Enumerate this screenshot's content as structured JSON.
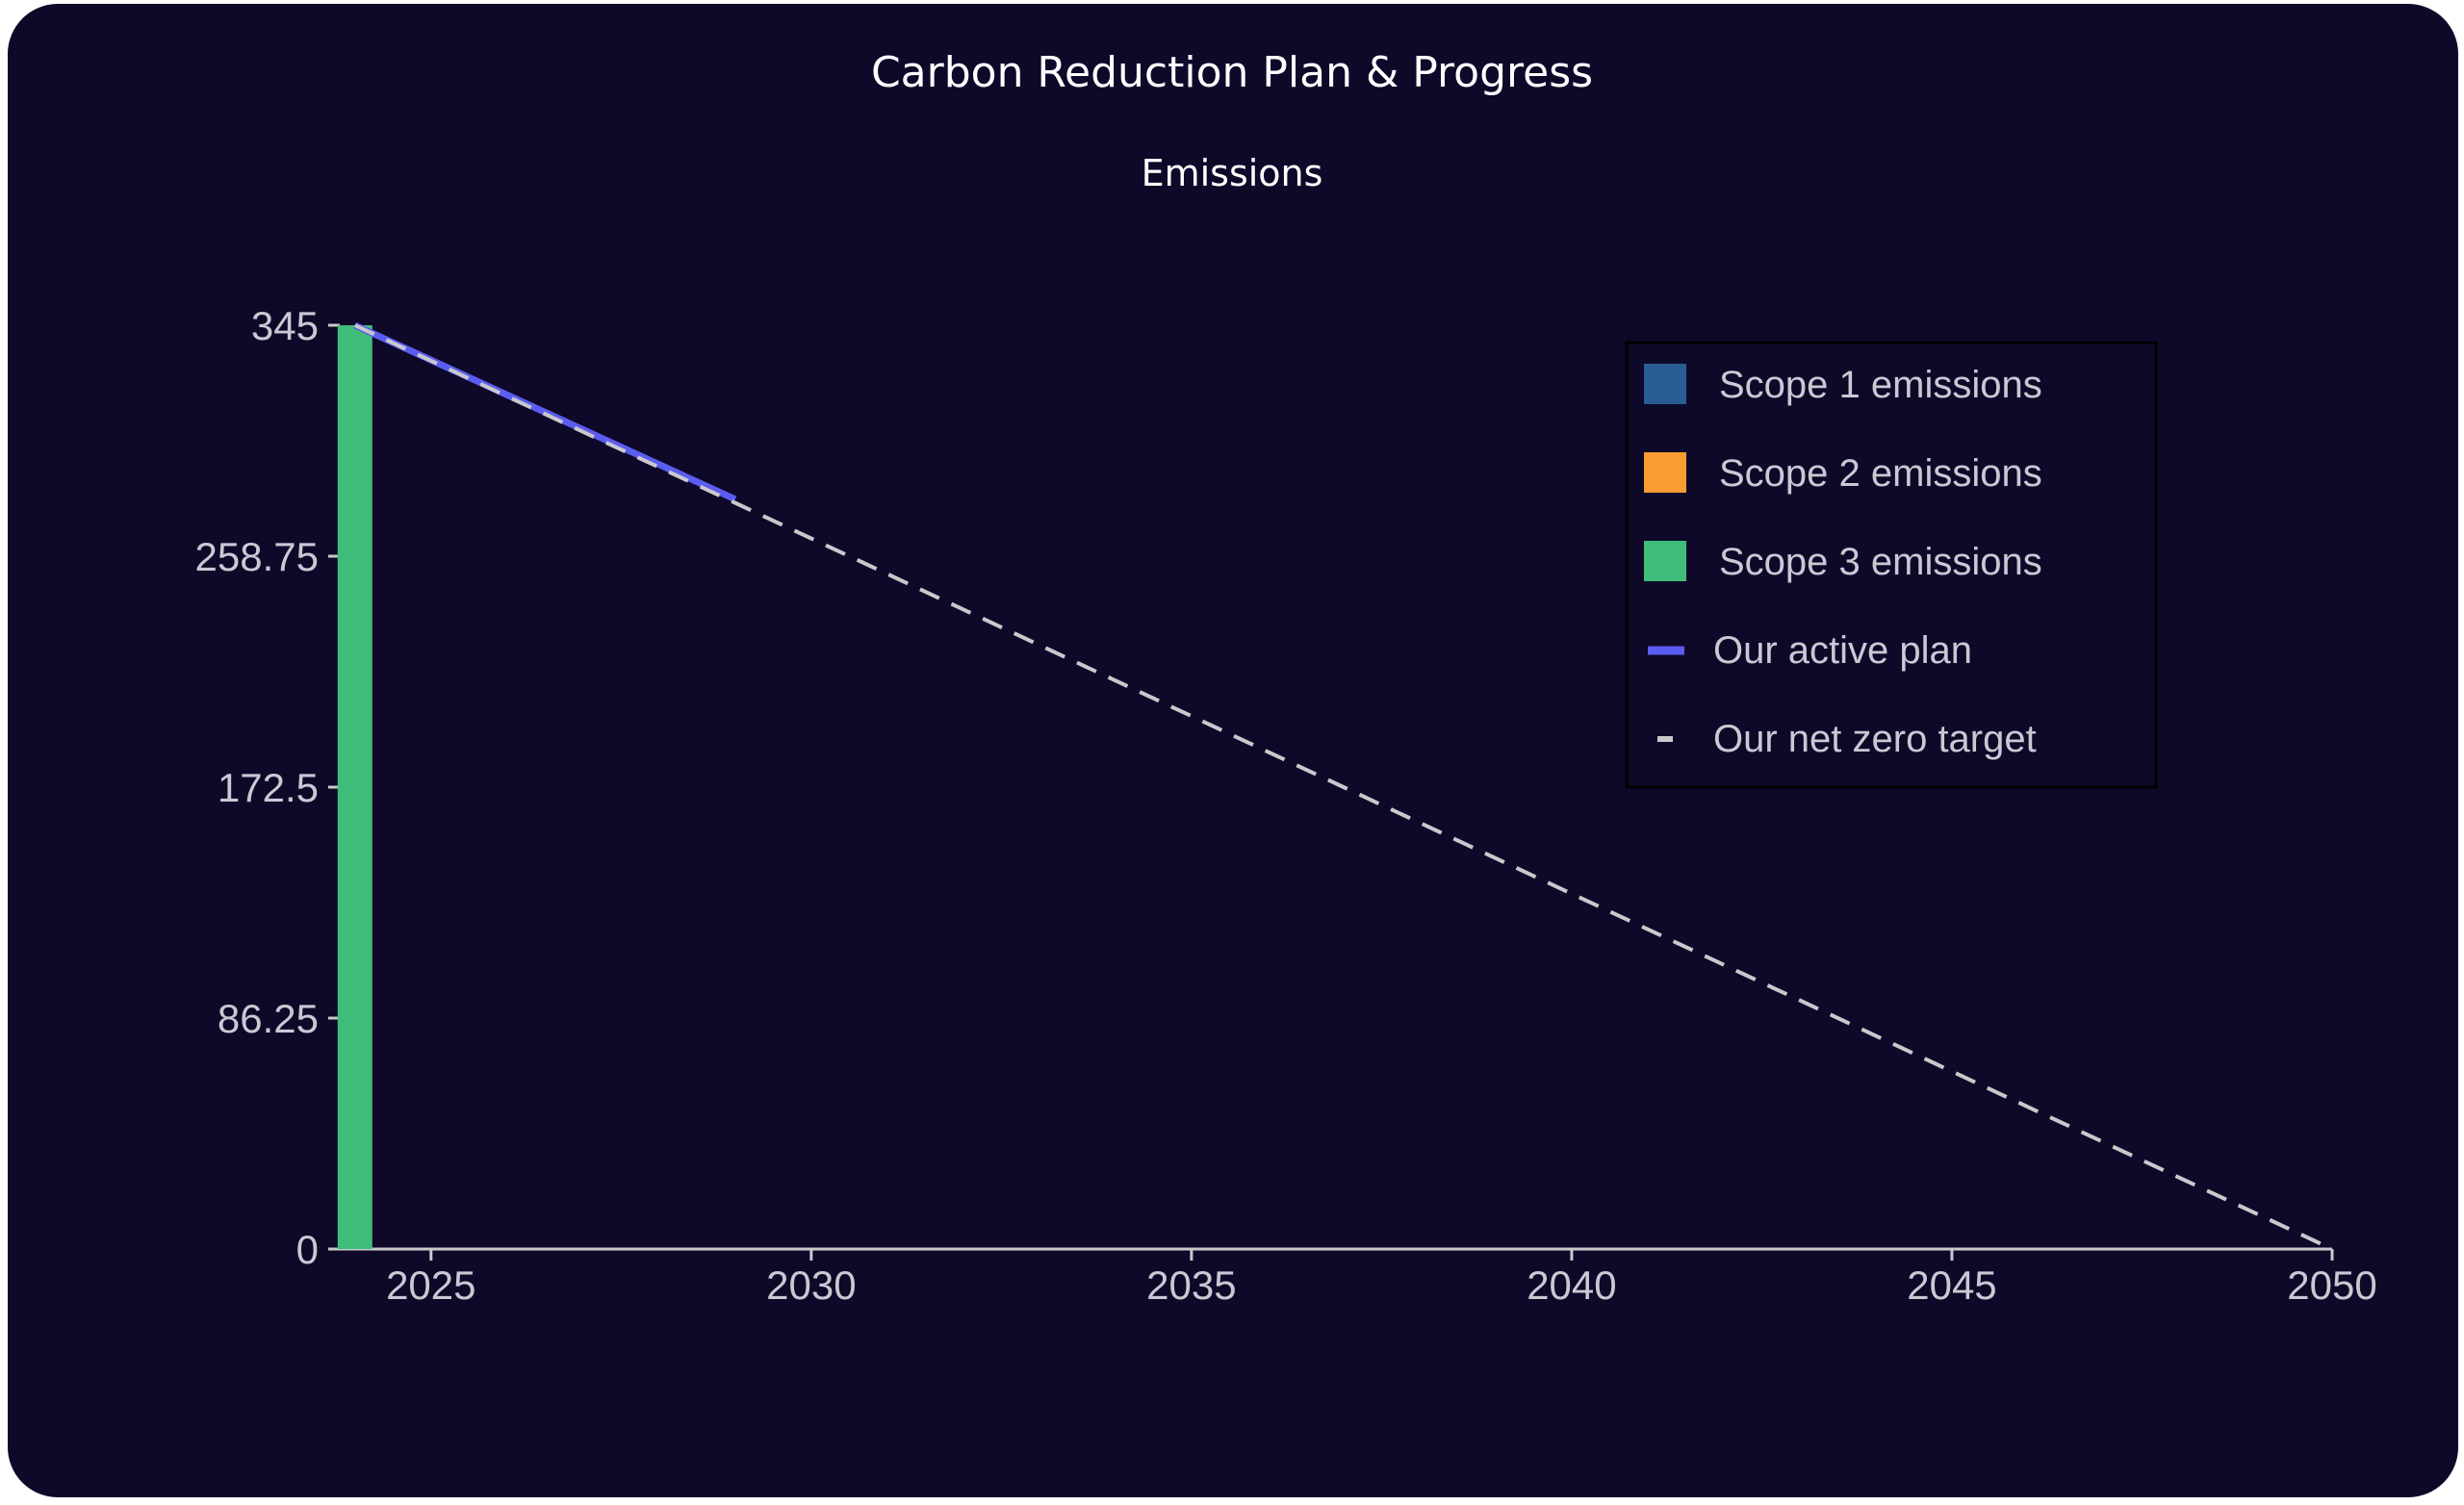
{
  "chart_data": {
    "type": "bar",
    "title": "Carbon Reduction Plan & Progress",
    "subtitle": "Emissions",
    "xlabel": "",
    "ylabel": "",
    "xlim": [
      2023.8,
      2050
    ],
    "ylim": [
      0,
      345
    ],
    "x_ticks": [
      "2025",
      "2030",
      "2035",
      "2040",
      "2045",
      "2050"
    ],
    "y_ticks": [
      "0",
      "86.25",
      "172.5",
      "258.75",
      "345"
    ],
    "bars": [
      {
        "x": 2024,
        "scope1": 0,
        "scope2": 0,
        "scope3": 345
      }
    ],
    "series": [
      {
        "name": "Scope 1 emissions",
        "kind": "bar",
        "color": "#2a5d94"
      },
      {
        "name": "Scope 2 emissions",
        "kind": "bar",
        "color": "#f99d33"
      },
      {
        "name": "Scope 3 emissions",
        "kind": "bar",
        "color": "#41bd7b"
      },
      {
        "name": "Our active plan",
        "kind": "line",
        "color": "#5b5cf0",
        "x": [
          2024,
          2029
        ],
        "y": [
          345,
          280
        ]
      },
      {
        "name": "Our net zero target",
        "kind": "dashed-line",
        "color": "#c9c9cc",
        "x": [
          2024,
          2050
        ],
        "y": [
          345,
          0
        ]
      }
    ],
    "grid": false,
    "legend_position": "top-right"
  },
  "colors": {
    "background": "#0e0829",
    "axis": "#c9c9cc",
    "tick_label": "#c9c9d4",
    "text": "#ffffff"
  }
}
